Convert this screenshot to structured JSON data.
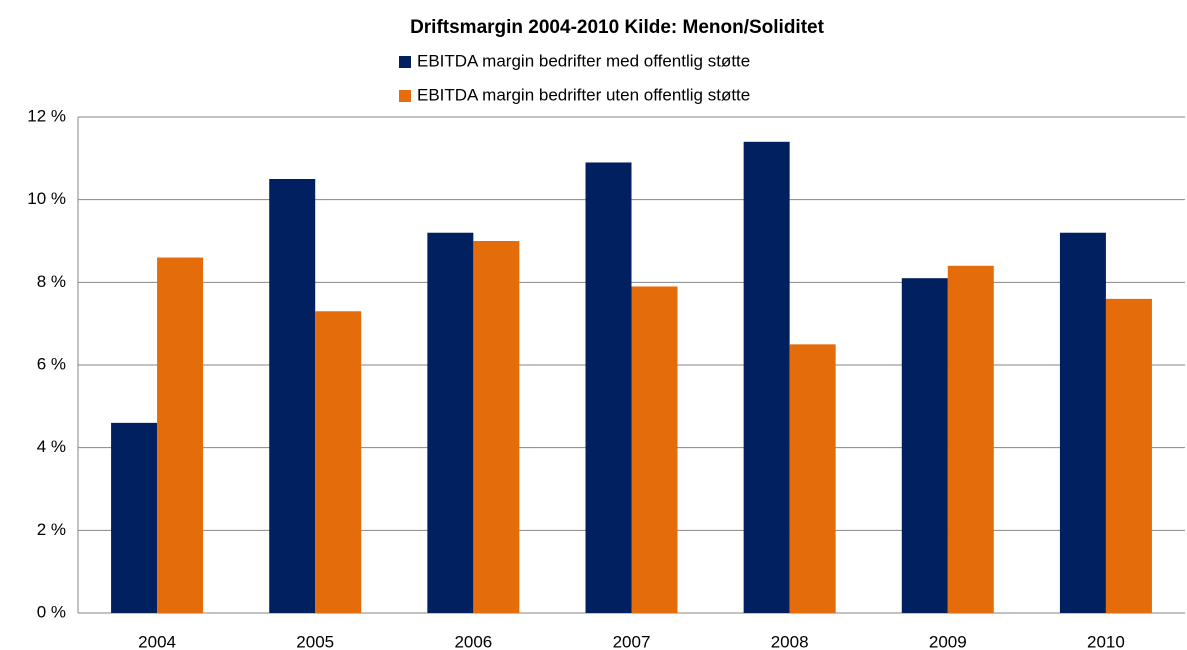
{
  "chart_data": {
    "type": "bar",
    "title": "Driftsmargin 2004-2010 Kilde: Menon/Soliditet",
    "categories": [
      "2004",
      "2005",
      "2006",
      "2007",
      "2008",
      "2009",
      "2010"
    ],
    "series": [
      {
        "name": "EBITDA margin bedrifter med offentlig støtte",
        "color": "#002060",
        "values": [
          4.6,
          10.5,
          9.2,
          10.9,
          11.4,
          8.1,
          9.2
        ]
      },
      {
        "name": "EBITDA margin bedrifter uten offentlig støtte",
        "color": "#e46c0a",
        "values": [
          8.6,
          7.3,
          9.0,
          7.9,
          6.5,
          8.4,
          7.6
        ]
      }
    ],
    "ylim": [
      0,
      12
    ],
    "yticks": [
      {
        "value": 0,
        "label": "0 %"
      },
      {
        "value": 2,
        "label": "2 %"
      },
      {
        "value": 4,
        "label": "4 %"
      },
      {
        "value": 6,
        "label": "6 %"
      },
      {
        "value": 8,
        "label": "8 %"
      },
      {
        "value": 10,
        "label": "10 %"
      },
      {
        "value": 12,
        "label": "12 %"
      }
    ],
    "grid": true,
    "legend": "top"
  }
}
